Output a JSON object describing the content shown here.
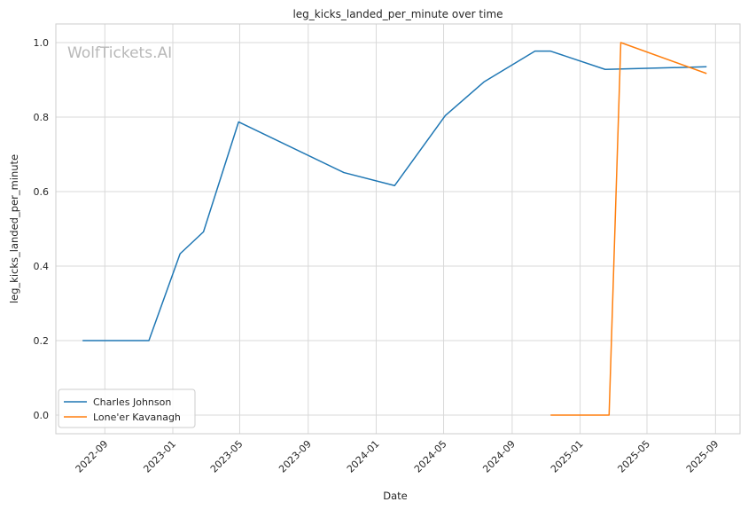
{
  "chart_data": {
    "type": "line",
    "title": "leg_kicks_landed_per_minute over time",
    "xlabel": "Date",
    "ylabel": "leg_kicks_landed_per_minute",
    "watermark": "WolfTickets.AI",
    "xlim": [
      "2022-06-05",
      "2025-10-15"
    ],
    "ylim": [
      -0.05,
      1.05
    ],
    "x_ticks": [
      "2022-09",
      "2023-01",
      "2023-05",
      "2023-09",
      "2024-01",
      "2024-05",
      "2024-09",
      "2025-01",
      "2025-05",
      "2025-09"
    ],
    "y_ticks": [
      0.0,
      0.2,
      0.4,
      0.6,
      0.8,
      1.0
    ],
    "grid": true,
    "legend_position": "lower-left",
    "series": [
      {
        "name": "Charles Johnson",
        "color": "#1f77b4",
        "x": [
          "2022-07-23",
          "2022-11-19",
          "2023-01-14",
          "2023-02-25",
          "2023-04-29",
          "2023-11-04",
          "2024-02-03",
          "2024-05-04",
          "2024-07-13",
          "2024-10-12",
          "2024-11-09",
          "2025-02-15",
          "2025-08-16"
        ],
        "y": [
          0.2,
          0.2,
          0.433,
          0.492,
          0.787,
          0.651,
          0.616,
          0.804,
          0.895,
          0.977,
          0.977,
          0.928,
          0.935
        ]
      },
      {
        "name": "Lone'er Kavanagh",
        "color": "#ff7f0e",
        "x": [
          "2024-11-09",
          "2025-02-22",
          "2025-03-15",
          "2025-08-16"
        ],
        "y": [
          0.0,
          0.0,
          1.0,
          0.917
        ]
      }
    ]
  }
}
